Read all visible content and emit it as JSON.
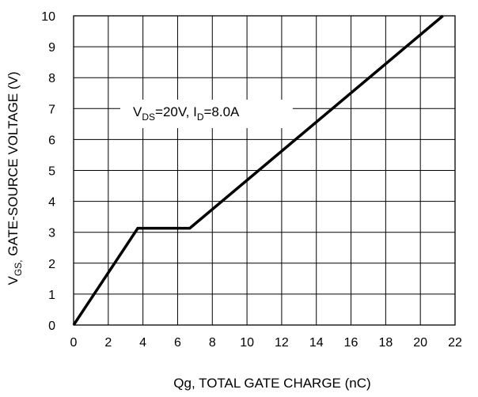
{
  "chart_data": {
    "type": "line",
    "xlabel": "Qg, TOTAL GATE CHARGE (nC)",
    "ylabel": {
      "main": "V",
      "sub": "GS,",
      "rest": " GATE-SOURCE VOLTAGE (V)"
    },
    "annotation": {
      "v": "V",
      "ds_sub": "DS",
      "mid": "=20V, I",
      "d_sub": "D",
      "tail": "=8.0A"
    },
    "xlim": [
      0,
      22
    ],
    "ylim": [
      0,
      10
    ],
    "x_ticks": [
      0,
      2,
      4,
      6,
      8,
      10,
      12,
      14,
      16,
      18,
      20,
      22
    ],
    "y_ticks": [
      0,
      1,
      2,
      3,
      4,
      5,
      6,
      7,
      8,
      9,
      10
    ],
    "grid": true,
    "series": [
      {
        "x": [
          0,
          3.7,
          6.7,
          21.3
        ],
        "y": [
          0,
          3.13,
          3.13,
          10
        ],
        "color": "#000000"
      }
    ]
  }
}
